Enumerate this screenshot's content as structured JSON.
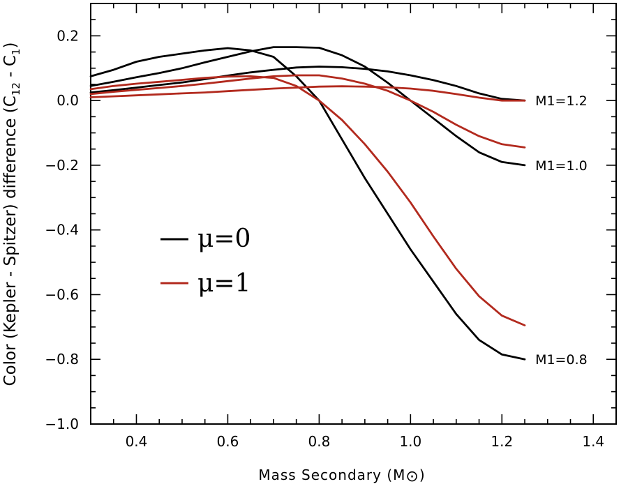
{
  "chart_data": {
    "type": "line",
    "title": "",
    "xlabel": "Mass Secondary (M",
    "xlabel_symbol": "⊙",
    "xlabel_close": ")",
    "ylabel": "Color (Kepler - Spitzer) difference  (C",
    "ylabel_sub": "12",
    "ylabel_close": " - C",
    "ylabel_sub2": "1",
    "ylabel_end": ")",
    "xlim": [
      0.3,
      1.45
    ],
    "ylim": [
      -1.0,
      0.3
    ],
    "xticks": [
      0.4,
      0.6,
      0.8,
      1.0,
      1.2,
      1.4
    ],
    "xtick_labels": [
      "0.4",
      "0.6",
      "0.8",
      "1.0",
      "1.2",
      "1.4"
    ],
    "yticks": [
      0.2,
      0.0,
      -0.2,
      -0.4,
      -0.6,
      -0.8,
      -1.0
    ],
    "ytick_labels": [
      "0.2",
      "0.0",
      "−0.2",
      "−0.4",
      "−0.6",
      "−0.8",
      "−1.0"
    ],
    "curve_labels": [
      {
        "text": "M1=1.2",
        "y": 0.0
      },
      {
        "text": "M1=1.0",
        "y": -0.2
      },
      {
        "text": "M1=0.8",
        "y": -0.8
      }
    ],
    "legend": [
      {
        "label": "μ=0",
        "color": "#000000"
      },
      {
        "label": "μ=1",
        "color": "#b22a1e"
      }
    ],
    "series": [
      {
        "name": "μ=0, M1=0.8",
        "color": "#000000",
        "x": [
          0.3,
          0.35,
          0.4,
          0.45,
          0.5,
          0.55,
          0.6,
          0.65,
          0.7,
          0.75,
          0.8,
          0.85,
          0.9,
          0.95,
          1.0,
          1.05,
          1.1,
          1.15,
          1.2,
          1.25
        ],
        "y": [
          0.075,
          0.095,
          0.12,
          0.135,
          0.145,
          0.155,
          0.162,
          0.155,
          0.135,
          0.075,
          0.0,
          -0.12,
          -0.24,
          -0.35,
          -0.46,
          -0.56,
          -0.66,
          -0.74,
          -0.785,
          -0.8
        ]
      },
      {
        "name": "μ=0, M1=1.0",
        "color": "#000000",
        "x": [
          0.3,
          0.35,
          0.4,
          0.45,
          0.5,
          0.55,
          0.6,
          0.65,
          0.7,
          0.75,
          0.8,
          0.85,
          0.9,
          0.95,
          1.0,
          1.05,
          1.1,
          1.15,
          1.2,
          1.25
        ],
        "y": [
          0.045,
          0.058,
          0.072,
          0.085,
          0.1,
          0.118,
          0.135,
          0.152,
          0.165,
          0.165,
          0.163,
          0.14,
          0.105,
          0.055,
          0.0,
          -0.055,
          -0.11,
          -0.16,
          -0.19,
          -0.2
        ]
      },
      {
        "name": "μ=0, M1=1.2",
        "color": "#000000",
        "x": [
          0.3,
          0.35,
          0.4,
          0.45,
          0.5,
          0.55,
          0.6,
          0.65,
          0.7,
          0.75,
          0.8,
          0.85,
          0.9,
          0.95,
          1.0,
          1.05,
          1.1,
          1.15,
          1.2,
          1.25
        ],
        "y": [
          0.025,
          0.032,
          0.04,
          0.048,
          0.056,
          0.066,
          0.077,
          0.087,
          0.095,
          0.102,
          0.105,
          0.103,
          0.098,
          0.09,
          0.078,
          0.063,
          0.045,
          0.022,
          0.005,
          0.0
        ]
      },
      {
        "name": "μ=1, M1=0.8",
        "color": "#b22a1e",
        "x": [
          0.3,
          0.35,
          0.4,
          0.45,
          0.5,
          0.55,
          0.6,
          0.65,
          0.7,
          0.75,
          0.8,
          0.85,
          0.9,
          0.95,
          1.0,
          1.05,
          1.1,
          1.15,
          1.2,
          1.25
        ],
        "y": [
          0.035,
          0.045,
          0.052,
          0.058,
          0.064,
          0.07,
          0.074,
          0.075,
          0.07,
          0.045,
          0.0,
          -0.06,
          -0.135,
          -0.22,
          -0.315,
          -0.42,
          -0.52,
          -0.605,
          -0.665,
          -0.695
        ]
      },
      {
        "name": "μ=1, M1=1.0",
        "color": "#b22a1e",
        "x": [
          0.3,
          0.35,
          0.4,
          0.45,
          0.5,
          0.55,
          0.6,
          0.65,
          0.7,
          0.75,
          0.8,
          0.85,
          0.9,
          0.95,
          1.0,
          1.05,
          1.1,
          1.15,
          1.2,
          1.25
        ],
        "y": [
          0.02,
          0.027,
          0.033,
          0.039,
          0.045,
          0.052,
          0.06,
          0.068,
          0.075,
          0.078,
          0.078,
          0.068,
          0.052,
          0.03,
          0.0,
          -0.035,
          -0.075,
          -0.11,
          -0.135,
          -0.145
        ]
      },
      {
        "name": "μ=1, M1=1.2",
        "color": "#b22a1e",
        "x": [
          0.3,
          0.35,
          0.4,
          0.45,
          0.5,
          0.55,
          0.6,
          0.65,
          0.7,
          0.75,
          0.8,
          0.85,
          0.9,
          0.95,
          1.0,
          1.05,
          1.1,
          1.15,
          1.2,
          1.25
        ],
        "y": [
          0.01,
          0.013,
          0.016,
          0.019,
          0.022,
          0.025,
          0.029,
          0.033,
          0.037,
          0.04,
          0.043,
          0.044,
          0.043,
          0.041,
          0.037,
          0.03,
          0.02,
          0.009,
          0.0,
          0.0
        ]
      }
    ]
  }
}
